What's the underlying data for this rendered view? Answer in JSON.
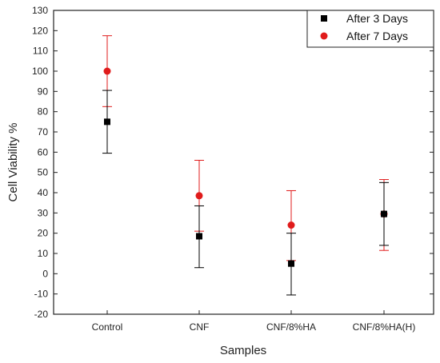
{
  "chart_data": {
    "type": "scatter",
    "categories": [
      "Control",
      "CNF",
      "CNF/8%HA",
      "CNF/8%HA(H)"
    ],
    "xlabel": "Samples",
    "ylabel": "Cell Viability %",
    "ylim": [
      -20,
      130
    ],
    "yticks": [
      -20,
      -10,
      0,
      10,
      20,
      30,
      40,
      50,
      60,
      70,
      80,
      90,
      100,
      110,
      120,
      130
    ],
    "grid": false,
    "legend_position": "top-right",
    "series": [
      {
        "name": "After 3 Days",
        "color": "#000000",
        "marker": "square",
        "values": [
          75,
          18.5,
          5,
          29.5
        ],
        "lower": [
          59.5,
          3,
          -10.5,
          14
        ],
        "upper": [
          90.5,
          33.5,
          20,
          45
        ]
      },
      {
        "name": "After 7 Days",
        "color": "#e01b1b",
        "marker": "circle",
        "values": [
          100,
          38.5,
          24,
          29.5
        ],
        "lower": [
          82.5,
          21,
          6.5,
          11.5
        ],
        "upper": [
          117.5,
          56,
          41,
          46.5
        ]
      }
    ]
  }
}
